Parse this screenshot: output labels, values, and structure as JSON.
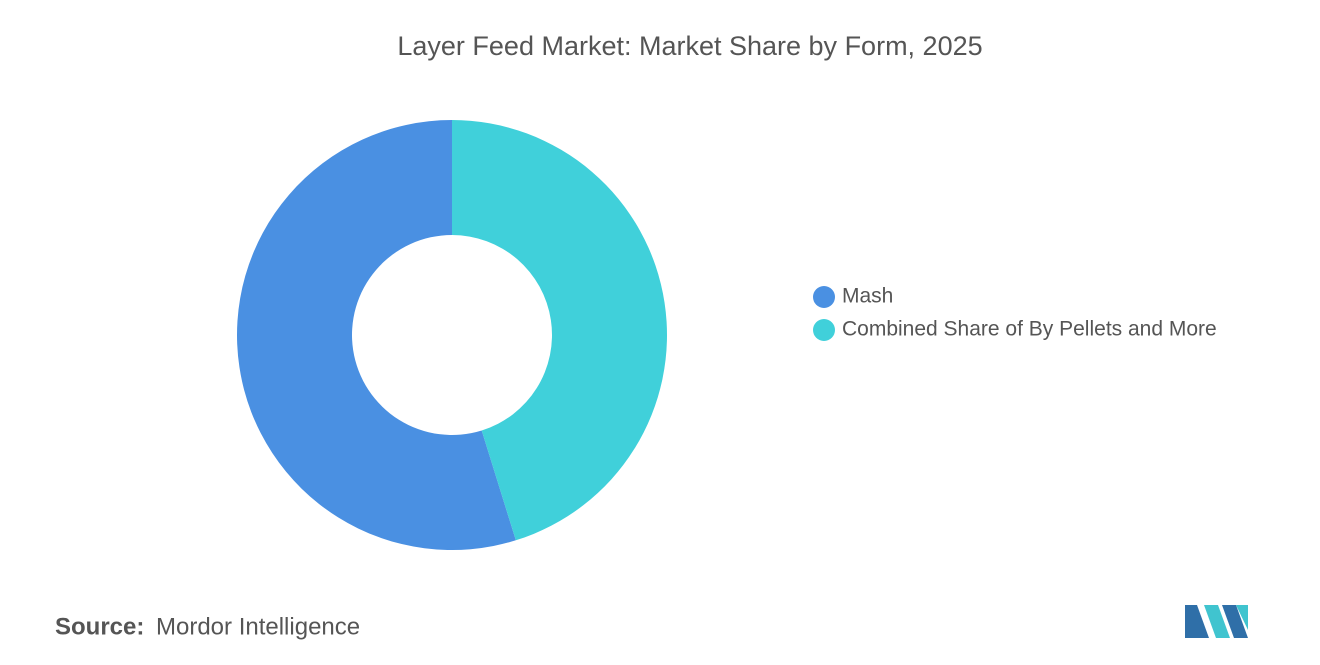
{
  "chart_data": {
    "type": "donut",
    "title": "Layer Feed Market: Market Share by Form, 2025",
    "categories": [
      "Mash",
      "Combined Share of By Pellets and More"
    ],
    "values": [
      54.8,
      45.2
    ],
    "colors": [
      "#4a90e2",
      "#40d0da"
    ],
    "legend": "right"
  },
  "footer": {
    "source_label": "Source:",
    "source": "Mordor Intelligence"
  }
}
